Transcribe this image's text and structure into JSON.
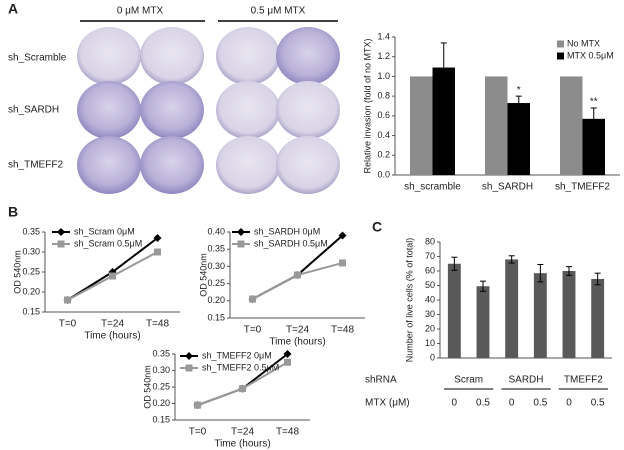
{
  "panel_labels": [
    "A",
    "B",
    "C"
  ],
  "dish_panel": {
    "conditions": [
      "0 μM MTX",
      "0.5 μM MTX"
    ],
    "rows": [
      "sh_Scramble",
      "sh_SARDH",
      "sh_TMEFF2"
    ]
  },
  "chart_data": [
    {
      "type": "bar",
      "ylabel": "Relative invasion (fold of no MTX)",
      "categories": [
        "sh_scramble",
        "sh_SARDH",
        "sh_TMEFF2"
      ],
      "series": [
        {
          "name": "No MTX",
          "color": "#8c8c8c",
          "values": [
            1,
            1,
            1
          ]
        },
        {
          "name": "MTX 0.5μM",
          "color": "#000000",
          "values": [
            1.09,
            0.73,
            0.57
          ],
          "errors": [
            0.25,
            0.07,
            0.11
          ],
          "significance": [
            null,
            "*",
            "**"
          ]
        }
      ],
      "ylim": [
        0,
        1.4
      ],
      "yticks": [
        {
          "value": 0,
          "label": "0.0"
        },
        0.2,
        0.4,
        0.6,
        0.8,
        {
          "value": 1,
          "label": "1.0"
        },
        1.2,
        1.4
      ],
      "legend": "upper right"
    },
    {
      "type": "line",
      "ylabel": "OD 540nm",
      "xlabel": "Time (hours)",
      "categories": [
        "T=0",
        "T=24",
        "T=48"
      ],
      "series": [
        {
          "name": "sh_Scram  0μM",
          "color": "#000000",
          "values": [
            0.18,
            0.25,
            0.335
          ]
        },
        {
          "name": "sh_Scram  0.5μM",
          "color": "#999999",
          "values": [
            0.18,
            0.24,
            0.3
          ]
        }
      ],
      "ylim": [
        0.15,
        0.35
      ],
      "yticks": [
        0.15,
        {
          "value": 0.2,
          "label": "0.20"
        },
        0.25,
        {
          "value": 0.3,
          "label": "0.30"
        },
        0.35
      ],
      "legend": "upper left"
    },
    {
      "type": "line",
      "ylabel": "OD 540nm",
      "xlabel": "Time (hours)",
      "categories": [
        "T=0",
        "T=24",
        "T=48"
      ],
      "series": [
        {
          "name": "sh_SARDH  0μM",
          "color": "#000000",
          "values": [
            0.205,
            0.275,
            0.39
          ]
        },
        {
          "name": "sh_SARDH  0.5μM",
          "color": "#999999",
          "values": [
            0.205,
            0.275,
            0.31
          ]
        }
      ],
      "ylim": [
        0.15,
        0.4
      ],
      "yticks": [
        0.15,
        {
          "value": 0.2,
          "label": "0.20"
        },
        0.25,
        {
          "value": 0.3,
          "label": "0.30"
        },
        0.35,
        {
          "value": 0.4,
          "label": "0.40"
        }
      ],
      "legend": "upper left"
    },
    {
      "type": "line",
      "ylabel": "OD 540nm",
      "xlabel": "Time (hours)",
      "categories": [
        "T=0",
        "T=24",
        "T=48"
      ],
      "series": [
        {
          "name": "sh_TMEFF2 0μM",
          "color": "#000000",
          "values": [
            0.195,
            0.245,
            0.35
          ]
        },
        {
          "name": "sh_TMEFF2 0.5μM",
          "color": "#999999",
          "values": [
            0.195,
            0.245,
            0.325
          ]
        }
      ],
      "ylim": [
        0.15,
        0.35
      ],
      "yticks": [
        0.15,
        {
          "value": 0.2,
          "label": "0.20"
        },
        0.25,
        {
          "value": 0.3,
          "label": "0.30"
        },
        0.35
      ],
      "legend": "upper left"
    },
    {
      "type": "bar",
      "ylabel": "Number of live cells (% of total)",
      "categories": [
        "0",
        "0.5",
        "0",
        "0.5",
        "0",
        "0.5"
      ],
      "groups": [
        "Scram",
        "SARDH",
        "TMEFF2"
      ],
      "row_labels": [
        "shRNA",
        "MTX (μM)"
      ],
      "values": [
        65,
        49.5,
        68,
        58.5,
        60,
        54.5
      ],
      "errors": [
        4.5,
        3.5,
        2.5,
        6,
        3,
        4
      ],
      "color": "#595959",
      "ylim": [
        0,
        80
      ],
      "yticks": [
        0,
        10,
        20,
        30,
        40,
        50,
        60,
        70,
        80
      ]
    }
  ]
}
